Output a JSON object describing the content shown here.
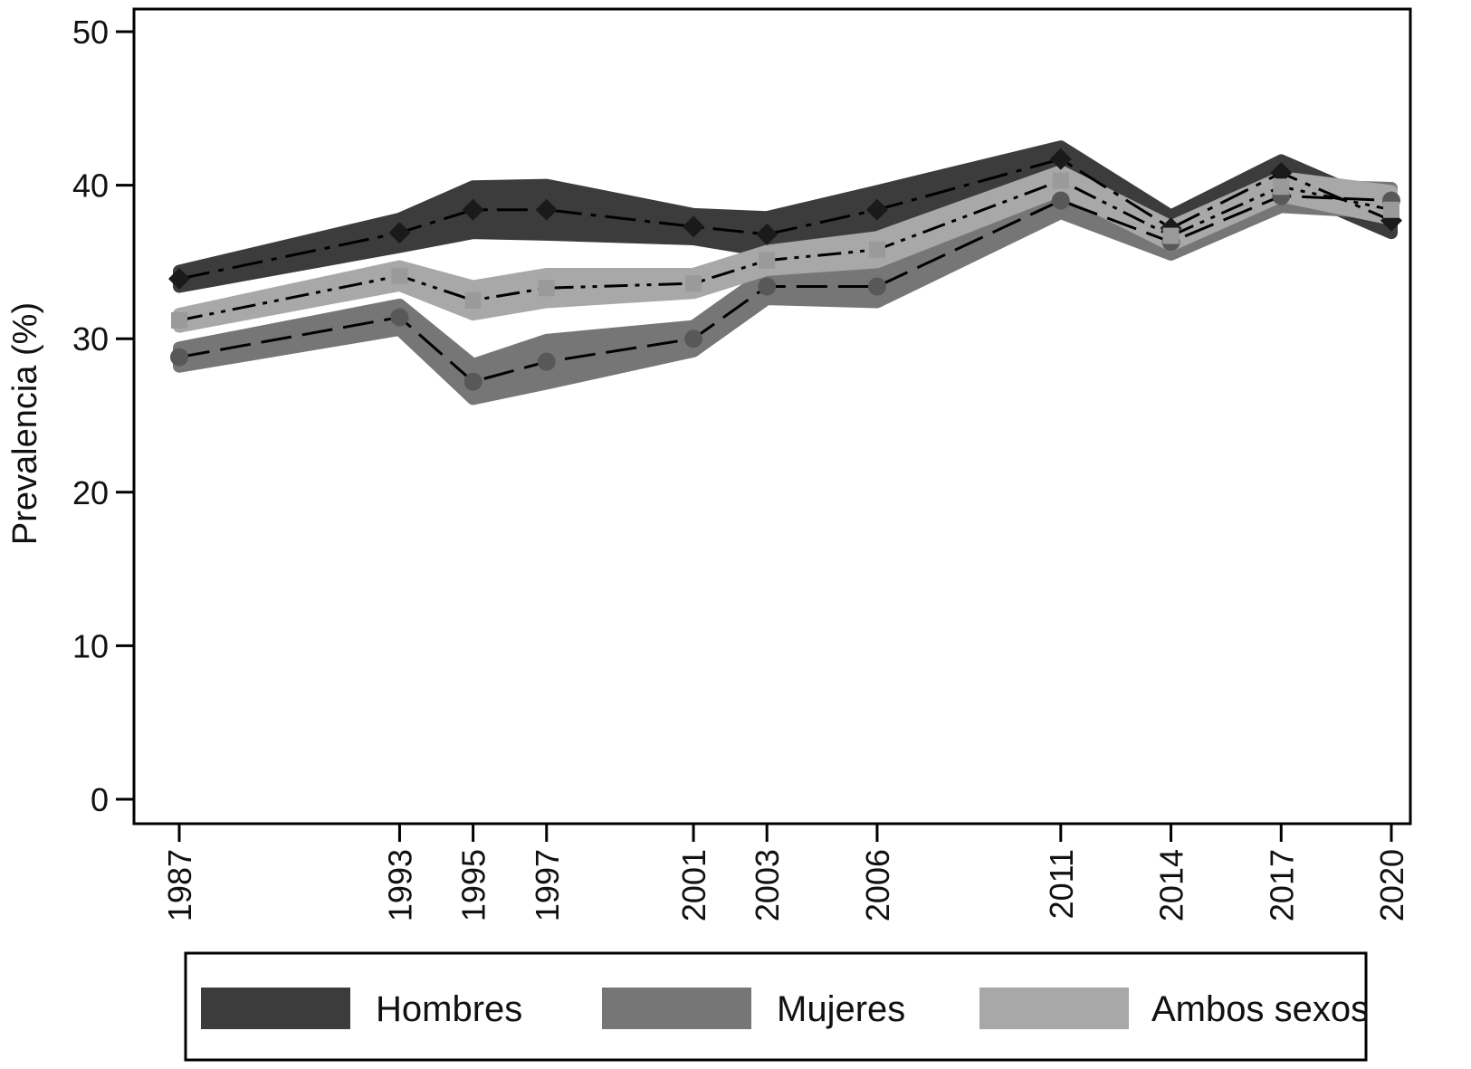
{
  "chart_data": {
    "type": "line",
    "title": "",
    "xlabel": "",
    "ylabel": "Prevalencia (%)",
    "x": [
      1987,
      1993,
      1995,
      1997,
      2001,
      2003,
      2006,
      2011,
      2014,
      2017,
      2020
    ],
    "ylim": [
      0,
      50
    ],
    "yticks": [
      0,
      10,
      20,
      30,
      40,
      50
    ],
    "grid": false,
    "legend_position": "bottom",
    "series": [
      {
        "name": "Hombres",
        "color": "#3c3c3c",
        "marker": "diamond",
        "line_style": "dash-dot",
        "values": [
          33.9,
          36.9,
          38.4,
          38.4,
          37.3,
          36.8,
          38.4,
          41.7,
          37.2,
          40.8,
          37.7
        ],
        "lower": [
          33.4,
          36.0,
          36.9,
          36.8,
          36.5,
          35.7,
          37.2,
          40.9,
          36.4,
          40.0,
          36.9
        ],
        "upper": [
          34.4,
          37.8,
          39.9,
          40.0,
          38.1,
          37.9,
          39.6,
          42.5,
          38.0,
          41.6,
          38.5
        ]
      },
      {
        "name": "Mujeres",
        "color": "#767676",
        "marker": "circle",
        "line_style": "dash",
        "values": [
          28.8,
          31.4,
          27.2,
          28.5,
          30.0,
          33.4,
          33.4,
          39.0,
          36.3,
          39.3,
          39.0
        ],
        "lower": [
          28.2,
          30.6,
          26.1,
          27.1,
          29.2,
          32.6,
          32.4,
          38.2,
          35.5,
          38.6,
          38.2
        ],
        "upper": [
          29.4,
          32.2,
          28.3,
          29.9,
          30.8,
          34.2,
          34.4,
          39.8,
          37.1,
          40.0,
          39.8
        ]
      },
      {
        "name": "Ambos sexos",
        "color": "#a8a8a8",
        "marker": "square",
        "line_style": "dash-dot-dot",
        "values": [
          31.2,
          34.1,
          32.5,
          33.3,
          33.6,
          35.1,
          35.8,
          40.3,
          36.7,
          39.9,
          38.4
        ],
        "lower": [
          30.8,
          33.5,
          31.6,
          32.4,
          33.0,
          34.5,
          35.0,
          39.7,
          36.1,
          39.3,
          37.8
        ],
        "upper": [
          31.6,
          34.7,
          33.4,
          34.2,
          34.2,
          35.7,
          36.6,
          40.9,
          37.3,
          40.5,
          39.6
        ]
      }
    ]
  }
}
